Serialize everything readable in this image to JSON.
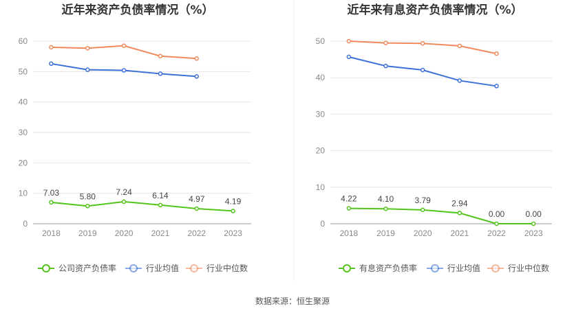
{
  "source_note": "数据来源：恒生聚源",
  "chart_data": [
    {
      "type": "line",
      "title": "近年来资产负债率情况（%）",
      "categories": [
        "2018",
        "2019",
        "2020",
        "2021",
        "2022",
        "2023"
      ],
      "ylim": [
        0,
        60
      ],
      "yticks": [
        0,
        10,
        20,
        30,
        40,
        50,
        60
      ],
      "grid": true,
      "legend_position": "bottom",
      "series": [
        {
          "name": "公司资产负债率",
          "color": "#52c41a",
          "values": [
            7.03,
            5.8,
            7.24,
            6.14,
            4.97,
            4.19
          ],
          "labels": [
            "7.03",
            "5.80",
            "7.24",
            "6.14",
            "4.97",
            "4.19"
          ]
        },
        {
          "name": "行业均值",
          "color": "#3b6fd8",
          "values": [
            52.6,
            50.6,
            50.4,
            49.3,
            48.4,
            null
          ]
        },
        {
          "name": "行业中位数",
          "color": "#f08a5d",
          "values": [
            58.0,
            57.7,
            58.5,
            55.1,
            54.3,
            null
          ]
        }
      ]
    },
    {
      "type": "line",
      "title": "近年来有息资产负债率情况（%）",
      "categories": [
        "2018",
        "2019",
        "2020",
        "2021",
        "2022",
        "2023"
      ],
      "ylim": [
        0,
        50
      ],
      "yticks": [
        0,
        10,
        20,
        30,
        40,
        50
      ],
      "grid": true,
      "legend_position": "bottom",
      "series": [
        {
          "name": "有息资产负债率",
          "color": "#52c41a",
          "values": [
            4.22,
            4.1,
            3.79,
            2.94,
            0.0,
            0.0
          ],
          "labels": [
            "4.22",
            "4.10",
            "3.79",
            "2.94",
            "0.00",
            "0.00"
          ]
        },
        {
          "name": "行业均值",
          "color": "#3b6fd8",
          "values": [
            45.7,
            43.2,
            42.1,
            39.2,
            37.7,
            null
          ]
        },
        {
          "name": "行业中位数",
          "color": "#f08a5d",
          "values": [
            50.0,
            49.5,
            49.4,
            48.7,
            46.6,
            null
          ]
        }
      ]
    }
  ]
}
